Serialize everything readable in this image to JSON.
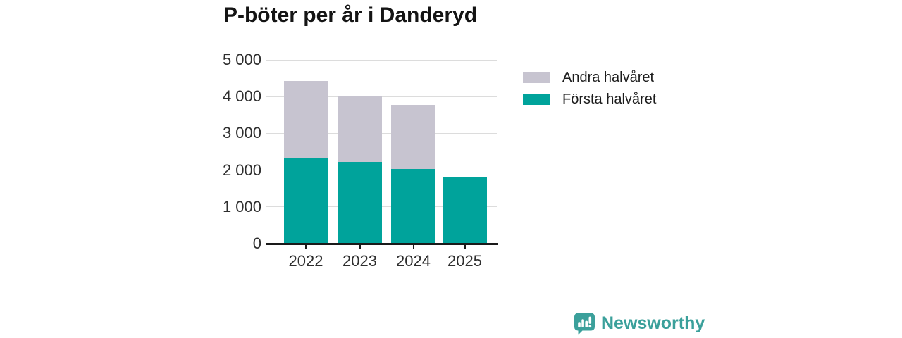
{
  "title": "P-böter per år i Danderyd",
  "chart_data": {
    "type": "bar",
    "stacked": true,
    "title": "P-böter per år i Danderyd",
    "categories": [
      "2022",
      "2023",
      "2024",
      "2025"
    ],
    "series": [
      {
        "name": "Första halvåret",
        "color": "#00a39b",
        "values": [
          2320,
          2230,
          2040,
          1805
        ]
      },
      {
        "name": "Andra halvåret",
        "color": "#c7c4d0",
        "values": [
          2100,
          1780,
          1735,
          null
        ]
      }
    ],
    "totals": [
      4420,
      4010,
      3775,
      1805
    ],
    "xlabel": "",
    "ylabel": "",
    "ylim": [
      0,
      5000
    ],
    "yticks": {
      "values": [
        0,
        1000,
        2000,
        3000,
        4000,
        5000
      ],
      "labels": [
        "0",
        "1 000",
        "2 000",
        "3 000",
        "4 000",
        "5 000"
      ]
    },
    "grid": true,
    "legend_position": "right"
  },
  "legend": {
    "items": [
      {
        "label": "Andra halvåret",
        "color": "#c7c4d0"
      },
      {
        "label": "Första halvåret",
        "color": "#00a39b"
      }
    ]
  },
  "branding": {
    "name": "Newsworthy",
    "logo_icon": "newsworthy-speech-bubble-barchart-icon",
    "color": "#3ba09b"
  },
  "colors": {
    "first_half": "#00a39b",
    "second_half": "#c7c4d0",
    "axis": "#1a1a1a",
    "grid": "#dcdcdc",
    "tick_text": "#2e2e2e",
    "title_text": "#141414",
    "background": "#ffffff"
  }
}
